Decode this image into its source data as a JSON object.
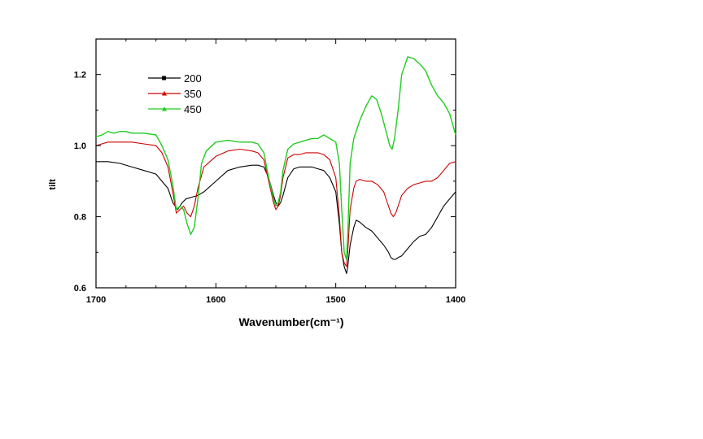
{
  "chart_data": {
    "type": "line",
    "xlabel": "Wavenumber(cm⁻¹)",
    "ylabel": "tilt",
    "xlim": [
      1700,
      1400
    ],
    "ylim": [
      0.6,
      1.3
    ],
    "x_ticks": [
      1700,
      1600,
      1500,
      1400
    ],
    "x_tick_labels": [
      "1700",
      "1600",
      "1500",
      "1400"
    ],
    "y_ticks": [
      0.6,
      0.8,
      1.0,
      1.2
    ],
    "y_tick_labels": [
      "0.6",
      "0.8",
      "1.0",
      "1.2"
    ],
    "grid": false,
    "legend_position": "top-left",
    "series": [
      {
        "name": "200",
        "color": "#000000",
        "marker": "square",
        "x": [
          1700,
          1690,
          1680,
          1670,
          1660,
          1650,
          1645,
          1640,
          1636,
          1632,
          1630,
          1628,
          1625,
          1620,
          1615,
          1610,
          1600,
          1590,
          1580,
          1570,
          1565,
          1560,
          1556,
          1552,
          1550,
          1548,
          1546,
          1544,
          1540,
          1535,
          1530,
          1525,
          1520,
          1515,
          1510,
          1505,
          1500,
          1497,
          1495,
          1493,
          1491,
          1490,
          1488,
          1485,
          1483,
          1480,
          1475,
          1470,
          1465,
          1460,
          1456,
          1454,
          1452,
          1450,
          1448,
          1445,
          1440,
          1435,
          1430,
          1425,
          1420,
          1415,
          1410,
          1405,
          1400
        ],
        "y": [
          0.955,
          0.955,
          0.95,
          0.94,
          0.93,
          0.92,
          0.9,
          0.88,
          0.84,
          0.82,
          0.83,
          0.84,
          0.85,
          0.855,
          0.86,
          0.87,
          0.9,
          0.93,
          0.94,
          0.945,
          0.945,
          0.94,
          0.91,
          0.86,
          0.84,
          0.83,
          0.84,
          0.86,
          0.91,
          0.935,
          0.94,
          0.94,
          0.94,
          0.935,
          0.93,
          0.91,
          0.87,
          0.78,
          0.7,
          0.66,
          0.64,
          0.66,
          0.72,
          0.77,
          0.79,
          0.785,
          0.77,
          0.76,
          0.74,
          0.72,
          0.7,
          0.685,
          0.68,
          0.68,
          0.685,
          0.69,
          0.71,
          0.73,
          0.745,
          0.75,
          0.77,
          0.8,
          0.83,
          0.85,
          0.87
        ]
      },
      {
        "name": "350",
        "color": "#cc0000",
        "marker": "triangle",
        "x": [
          1700,
          1690,
          1680,
          1670,
          1660,
          1650,
          1645,
          1640,
          1636,
          1633,
          1630,
          1627,
          1624,
          1621,
          1618,
          1615,
          1610,
          1600,
          1590,
          1580,
          1570,
          1565,
          1560,
          1556,
          1552,
          1550,
          1548,
          1546,
          1544,
          1540,
          1535,
          1530,
          1525,
          1520,
          1515,
          1510,
          1505,
          1500,
          1497,
          1495,
          1493,
          1491,
          1490,
          1488,
          1485,
          1483,
          1480,
          1475,
          1470,
          1465,
          1460,
          1456,
          1454,
          1452,
          1450,
          1448,
          1445,
          1440,
          1435,
          1430,
          1425,
          1420,
          1415,
          1410,
          1405,
          1400
        ],
        "y": [
          1.0,
          1.01,
          1.01,
          1.01,
          1.005,
          1.0,
          0.98,
          0.94,
          0.87,
          0.81,
          0.82,
          0.83,
          0.81,
          0.8,
          0.83,
          0.88,
          0.94,
          0.97,
          0.985,
          0.99,
          0.985,
          0.98,
          0.96,
          0.9,
          0.84,
          0.82,
          0.83,
          0.86,
          0.91,
          0.965,
          0.975,
          0.975,
          0.98,
          0.98,
          0.98,
          0.975,
          0.96,
          0.91,
          0.8,
          0.7,
          0.67,
          0.66,
          0.7,
          0.82,
          0.88,
          0.9,
          0.905,
          0.9,
          0.9,
          0.89,
          0.87,
          0.83,
          0.81,
          0.8,
          0.81,
          0.83,
          0.86,
          0.88,
          0.89,
          0.895,
          0.9,
          0.9,
          0.91,
          0.93,
          0.95,
          0.955
        ]
      },
      {
        "name": "450",
        "color": "#22cc22",
        "marker": "triangle",
        "x": [
          1700,
          1695,
          1690,
          1685,
          1680,
          1675,
          1670,
          1660,
          1650,
          1645,
          1640,
          1636,
          1633,
          1630,
          1627,
          1624,
          1621,
          1618,
          1615,
          1612,
          1608,
          1600,
          1590,
          1580,
          1570,
          1565,
          1560,
          1556,
          1552,
          1550,
          1548,
          1546,
          1544,
          1540,
          1535,
          1530,
          1525,
          1520,
          1515,
          1510,
          1505,
          1500,
          1497,
          1495,
          1493,
          1491,
          1490,
          1488,
          1485,
          1480,
          1475,
          1470,
          1466,
          1462,
          1458,
          1455,
          1453,
          1451,
          1448,
          1445,
          1440,
          1435,
          1430,
          1425,
          1420,
          1415,
          1410,
          1405,
          1400
        ],
        "y": [
          1.025,
          1.03,
          1.04,
          1.035,
          1.04,
          1.04,
          1.035,
          1.035,
          1.03,
          1.0,
          0.96,
          0.89,
          0.82,
          0.83,
          0.82,
          0.78,
          0.75,
          0.77,
          0.85,
          0.95,
          0.985,
          1.01,
          1.015,
          1.01,
          1.01,
          1.005,
          0.98,
          0.91,
          0.85,
          0.83,
          0.84,
          0.87,
          0.93,
          0.99,
          1.005,
          1.01,
          1.015,
          1.02,
          1.02,
          1.03,
          1.02,
          1.01,
          0.95,
          0.82,
          0.7,
          0.68,
          0.75,
          0.95,
          1.02,
          1.07,
          1.11,
          1.14,
          1.13,
          1.09,
          1.04,
          1.0,
          0.99,
          1.02,
          1.1,
          1.2,
          1.25,
          1.245,
          1.23,
          1.21,
          1.17,
          1.14,
          1.12,
          1.09,
          1.03
        ]
      }
    ]
  }
}
